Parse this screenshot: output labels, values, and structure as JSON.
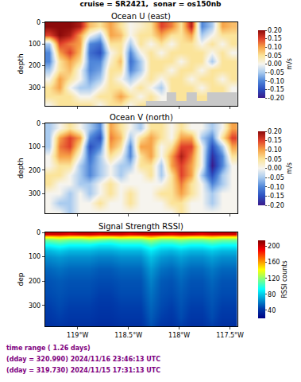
{
  "figure": {
    "title": "cruise = SR2421,  sonar = os150nb",
    "annotations": [
      "time range ( 1.26 days)",
      "(dday = 320.990) 2024/11/16 23:46:13 UTC",
      "(dday = 319.730) 2024/11/15 17:31:13 UTC"
    ]
  },
  "chart_data": [
    {
      "type": "heatmap",
      "title": "Ocean U (east)",
      "ylabel": "depth",
      "color": "diverging",
      "tick_labels": "y",
      "x": [
        -119.28,
        -119.18,
        -119.08,
        -118.98,
        -118.88,
        -118.78,
        -118.68,
        -118.58,
        -118.48,
        -118.38,
        -118.28,
        -118.18,
        -118.08,
        -117.98,
        -117.88,
        -117.78,
        -117.68,
        -117.58,
        -117.48
      ],
      "y": [
        20,
        60,
        100,
        140,
        180,
        220,
        260,
        300,
        340,
        380
      ],
      "z": [
        [
          0.2,
          0.2,
          0.2,
          0.18,
          0.08,
          0.05,
          0.1,
          0.05,
          0.0,
          0.02,
          0.05,
          0.15,
          0.12,
          0.05,
          0.18,
          -0.1,
          -0.05,
          0.1,
          0.08
        ],
        [
          0.15,
          0.2,
          0.18,
          0.1,
          0.0,
          -0.05,
          0.1,
          0.08,
          0.0,
          0.05,
          0.05,
          0.1,
          0.05,
          0.05,
          0.1,
          -0.05,
          0.0,
          0.05,
          0.05
        ],
        [
          -0.05,
          0.15,
          0.12,
          0.1,
          -0.1,
          -0.12,
          0.05,
          0.05,
          -0.05,
          0.05,
          0.0,
          0.05,
          0.0,
          0.05,
          0.05,
          0.0,
          0.05,
          0.0,
          0.05
        ],
        [
          -0.1,
          0.1,
          0.15,
          0.08,
          -0.12,
          -0.15,
          0.0,
          0.05,
          -0.1,
          0.0,
          0.05,
          0.0,
          0.05,
          0.05,
          0.05,
          0.05,
          0.0,
          0.05,
          0.0
        ],
        [
          -0.1,
          0.05,
          0.1,
          0.05,
          -0.1,
          -0.1,
          0.02,
          0.08,
          -0.12,
          -0.05,
          0.05,
          0.05,
          0.05,
          0.0,
          0.05,
          0.05,
          -0.05,
          0.05,
          0.05
        ],
        [
          -0.05,
          0.05,
          0.08,
          0.0,
          -0.1,
          -0.08,
          0.05,
          0.05,
          -0.1,
          -0.05,
          0.05,
          0.05,
          0.0,
          0.05,
          0.05,
          0.0,
          0.05,
          0.05,
          0.05
        ],
        [
          0.0,
          0.1,
          0.05,
          0.0,
          -0.08,
          -0.05,
          0.05,
          0.0,
          -0.05,
          0.0,
          0.05,
          0.0,
          0.05,
          0.05,
          0.0,
          0.05,
          0.05,
          0.0,
          0.05
        ],
        [
          0.05,
          0.1,
          0.0,
          -0.05,
          -0.05,
          0.0,
          0.05,
          0.05,
          0.0,
          0.05,
          0.0,
          -0.05,
          0.05,
          0.05,
          0.05,
          0.0,
          0.05,
          0.05,
          0.0
        ],
        [
          0.05,
          0.05,
          0.05,
          0.0,
          0.0,
          0.05,
          0.05,
          0.1,
          0.05,
          0.0,
          0.05,
          0.0,
          null,
          0.05,
          null,
          0.05,
          null,
          null,
          null
        ],
        [
          0.0,
          0.05,
          0.05,
          0.05,
          0.05,
          0.0,
          0.05,
          0.05,
          0.0,
          0.05,
          null,
          null,
          null,
          null,
          null,
          null,
          null,
          null,
          null
        ]
      ],
      "xlim": [
        -119.32,
        -117.43
      ],
      "xticks": [
        {
          "value": -119,
          "label": "119°W"
        },
        {
          "value": -118.5,
          "label": "118.5°W"
        },
        {
          "value": -118,
          "label": "118°W"
        },
        {
          "value": -117.5,
          "label": "117.5°W"
        }
      ],
      "ylim": [
        385,
        0
      ],
      "yticks": [
        0,
        100,
        200,
        300
      ],
      "zlim": [
        -0.2,
        0.2
      ],
      "zticks": [
        {
          "value": -0.2,
          "label": "-0.20"
        },
        {
          "value": -0.15,
          "label": "-0.15"
        },
        {
          "value": -0.1,
          "label": "-0.10"
        },
        {
          "value": -0.05,
          "label": "-0.05"
        },
        {
          "value": 0,
          "label": "0.00"
        },
        {
          "value": 0.05,
          "label": "0.05"
        },
        {
          "value": 0.1,
          "label": "0.10"
        },
        {
          "value": 0.15,
          "label": "0.15"
        },
        {
          "value": 0.2,
          "label": "0.20"
        }
      ],
      "colorbar_title": "m/s"
    },
    {
      "type": "heatmap",
      "title": "Ocean V (north)",
      "ylabel": "depth",
      "color": "diverging",
      "tick_labels": "y",
      "x": [
        -119.28,
        -119.18,
        -119.08,
        -118.98,
        -118.88,
        -118.78,
        -118.68,
        -118.58,
        -118.48,
        -118.38,
        -118.28,
        -118.18,
        -118.08,
        -117.98,
        -117.88,
        -117.78,
        -117.68,
        -117.58,
        -117.48
      ],
      "y": [
        20,
        60,
        100,
        140,
        180,
        220,
        260,
        300,
        340,
        380
      ],
      "z": [
        [
          -0.05,
          0.0,
          0.05,
          0.0,
          -0.05,
          -0.1,
          0.1,
          0.05,
          0.0,
          -0.05,
          0.05,
          0.05,
          0.0,
          0.05,
          0.0,
          0.0,
          -0.05,
          0.0,
          0.1
        ],
        [
          -0.05,
          0.1,
          0.15,
          0.1,
          -0.1,
          -0.15,
          0.12,
          0.08,
          -0.05,
          0.05,
          0.1,
          0.05,
          0.0,
          0.1,
          0.1,
          -0.05,
          -0.1,
          0.05,
          0.15
        ],
        [
          -0.05,
          0.12,
          0.15,
          0.05,
          -0.15,
          -0.1,
          0.1,
          0.05,
          -0.1,
          0.1,
          0.1,
          0.0,
          0.05,
          0.15,
          0.15,
          0.0,
          -0.15,
          -0.05,
          0.1
        ],
        [
          0.0,
          0.1,
          0.1,
          0.0,
          -0.12,
          -0.05,
          0.05,
          0.0,
          -0.1,
          0.05,
          0.1,
          0.0,
          0.1,
          0.18,
          0.12,
          0.0,
          -0.18,
          -0.1,
          0.05
        ],
        [
          0.0,
          0.05,
          0.05,
          -0.05,
          -0.1,
          -0.05,
          0.0,
          -0.05,
          -0.05,
          0.05,
          0.05,
          -0.05,
          0.1,
          0.15,
          0.1,
          0.0,
          -0.2,
          -0.1,
          0.0
        ],
        [
          0.05,
          0.05,
          0.0,
          -0.05,
          -0.1,
          -0.05,
          0.0,
          -0.05,
          0.0,
          0.0,
          0.05,
          -0.05,
          0.05,
          0.15,
          0.1,
          -0.05,
          -0.15,
          -0.05,
          0.0
        ],
        [
          0.05,
          0.0,
          0.0,
          -0.05,
          -0.05,
          0.0,
          0.05,
          0.0,
          0.0,
          0.0,
          0.0,
          0.0,
          0.05,
          0.12,
          0.05,
          0.0,
          -0.1,
          -0.05,
          0.0
        ],
        [
          0.0,
          0.0,
          -0.05,
          0.0,
          -0.05,
          0.0,
          0.05,
          0.0,
          0.05,
          0.0,
          0.0,
          0.05,
          0.05,
          0.1,
          0.05,
          0.0,
          -0.05,
          0.0,
          0.0
        ],
        [
          0.0,
          -0.05,
          -0.05,
          0.0,
          0.0,
          0.05,
          0.0,
          0.0,
          0.05,
          0.0,
          0.0,
          0.0,
          0.05,
          0.05,
          0.0,
          0.0,
          -0.05,
          0.0,
          0.0
        ],
        [
          0.0,
          0.0,
          -0.05,
          0.0,
          0.0,
          0.0,
          0.0,
          0.0,
          0.0,
          0.0,
          0.0,
          0.0,
          0.0,
          0.05,
          0.0,
          0.0,
          0.0,
          0.0,
          0.0
        ]
      ],
      "xlim": [
        -119.32,
        -117.43
      ],
      "xticks": [
        {
          "value": -119,
          "label": "119°W"
        },
        {
          "value": -118.5,
          "label": "118.5°W"
        },
        {
          "value": -118,
          "label": "118°W"
        },
        {
          "value": -117.5,
          "label": "117.5°W"
        }
      ],
      "ylim": [
        385,
        0
      ],
      "yticks": [
        0,
        100,
        200,
        300
      ],
      "zlim": [
        -0.2,
        0.2
      ],
      "zticks": [
        {
          "value": -0.2,
          "label": "-0.20"
        },
        {
          "value": -0.15,
          "label": "-0.15"
        },
        {
          "value": -0.1,
          "label": "-0.10"
        },
        {
          "value": -0.05,
          "label": "-0.05"
        },
        {
          "value": 0,
          "label": "0.00"
        },
        {
          "value": 0.05,
          "label": "0.05"
        },
        {
          "value": 0.1,
          "label": "0.10"
        },
        {
          "value": 0.15,
          "label": "0.15"
        },
        {
          "value": 0.2,
          "label": "0.20"
        }
      ],
      "colorbar_title": "m/s"
    },
    {
      "type": "heatmap",
      "title": "Signal Strength RSSI)",
      "ylabel": "dep",
      "color": "jet",
      "x": [
        -119.28,
        -119.18,
        -119.08,
        -118.98,
        -118.88,
        -118.78,
        -118.68,
        -118.58,
        -118.48,
        -118.38,
        -118.28,
        -118.18,
        -118.08,
        -117.98,
        -117.88,
        -117.78,
        -117.68,
        -117.58,
        -117.48
      ],
      "y": [
        5,
        15,
        30,
        50,
        75,
        100,
        150,
        200,
        250,
        300,
        350,
        380
      ],
      "z": [
        [
          200,
          200,
          195,
          200,
          200,
          195,
          200,
          200,
          195,
          200,
          200,
          200,
          195,
          200,
          200,
          195,
          200,
          200,
          200
        ],
        [
          150,
          155,
          150,
          150,
          155,
          150,
          150,
          155,
          150,
          150,
          160,
          150,
          150,
          155,
          150,
          150,
          155,
          150,
          150
        ],
        [
          115,
          120,
          115,
          115,
          120,
          115,
          110,
          115,
          115,
          115,
          125,
          115,
          115,
          120,
          115,
          115,
          120,
          115,
          115
        ],
        [
          95,
          100,
          95,
          95,
          95,
          90,
          90,
          95,
          95,
          95,
          105,
          95,
          95,
          100,
          95,
          95,
          100,
          95,
          95
        ],
        [
          75,
          80,
          75,
          75,
          75,
          72,
          72,
          75,
          75,
          75,
          88,
          78,
          75,
          80,
          75,
          75,
          80,
          75,
          75
        ],
        [
          65,
          68,
          65,
          65,
          65,
          62,
          62,
          65,
          65,
          65,
          78,
          68,
          65,
          70,
          65,
          65,
          70,
          65,
          65
        ],
        [
          55,
          58,
          55,
          55,
          55,
          52,
          52,
          55,
          55,
          55,
          68,
          58,
          55,
          60,
          55,
          55,
          60,
          55,
          55
        ],
        [
          50,
          52,
          50,
          50,
          50,
          48,
          48,
          50,
          50,
          50,
          62,
          52,
          50,
          55,
          50,
          50,
          55,
          50,
          50
        ],
        [
          48,
          50,
          48,
          48,
          48,
          45,
          45,
          48,
          48,
          48,
          58,
          50,
          48,
          52,
          48,
          48,
          52,
          48,
          48
        ],
        [
          45,
          48,
          45,
          45,
          45,
          42,
          42,
          45,
          45,
          45,
          55,
          48,
          45,
          50,
          45,
          45,
          50,
          45,
          45
        ],
        [
          42,
          45,
          42,
          42,
          42,
          40,
          40,
          42,
          42,
          42,
          52,
          45,
          42,
          48,
          42,
          42,
          48,
          42,
          42
        ],
        [
          40,
          42,
          40,
          40,
          40,
          38,
          38,
          40,
          40,
          40,
          50,
          42,
          40,
          45,
          40,
          40,
          45,
          40,
          40
        ]
      ],
      "xlim": [
        -119.32,
        -117.43
      ],
      "xticks": [
        {
          "value": -119,
          "label": "119°W"
        },
        {
          "value": -118.5,
          "label": "118.5°W"
        },
        {
          "value": -118,
          "label": "118°W"
        },
        {
          "value": -117.5,
          "label": "117.5°W"
        }
      ],
      "ylim": [
        385,
        0
      ],
      "yticks": [
        0,
        100,
        200,
        300
      ],
      "zlim": [
        20,
        215
      ],
      "zticks": [
        40,
        80,
        120,
        160,
        200
      ],
      "colorbar_title": "RSSI counts"
    }
  ]
}
